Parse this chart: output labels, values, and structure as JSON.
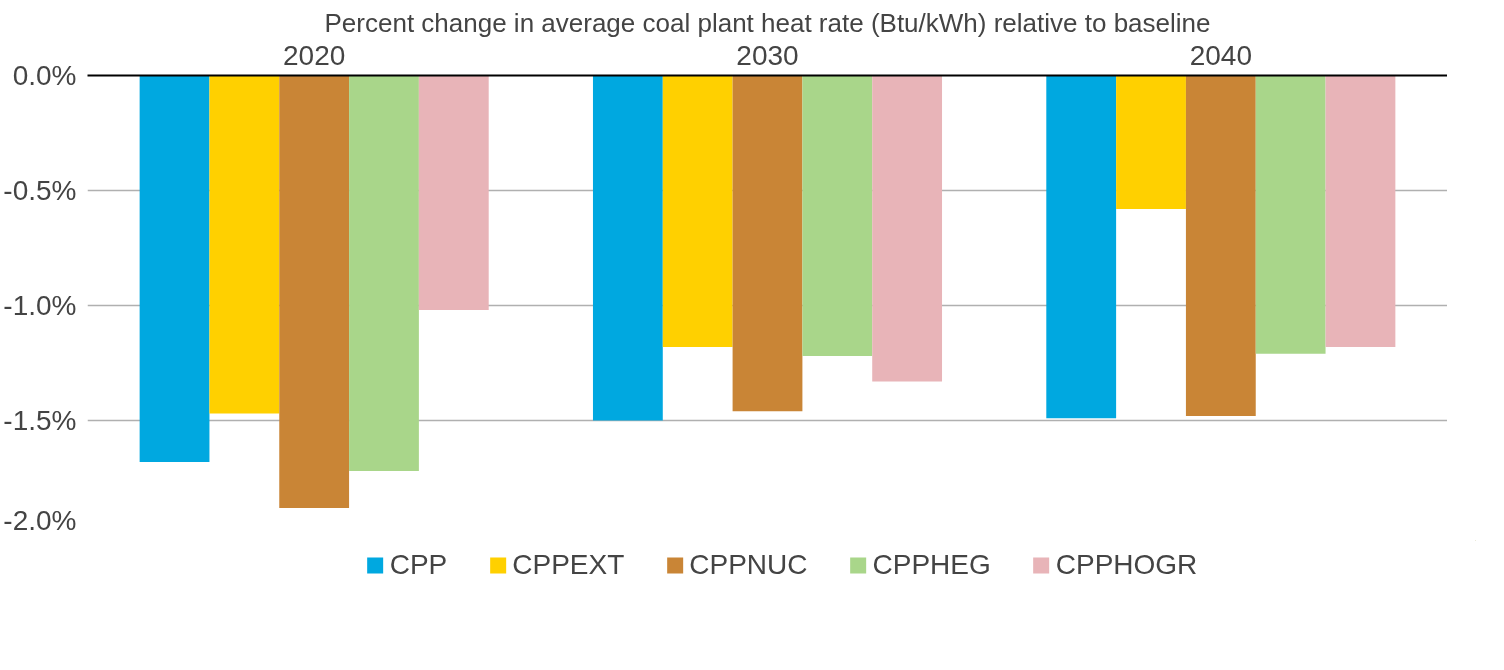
{
  "chart_data": {
    "type": "bar",
    "title": "Percent change in average coal plant heat rate (Btu/kWh) relative to baseline",
    "categories": [
      "2020",
      "2030",
      "2040"
    ],
    "series": [
      {
        "name": "CPP",
        "color": "#00a8e0",
        "values": [
          -1.68,
          -1.5,
          -1.49
        ]
      },
      {
        "name": "CPPEXT",
        "color": "#ffd000",
        "values": [
          -1.47,
          -1.18,
          -0.58
        ]
      },
      {
        "name": "CPPNUC",
        "color": "#c98536",
        "values": [
          -1.88,
          -1.46,
          -1.48
        ]
      },
      {
        "name": "CPPHEG",
        "color": "#a9d68a",
        "values": [
          -1.72,
          -1.22,
          -1.21
        ]
      },
      {
        "name": "CPPHOGR",
        "color": "#e8b4b8",
        "values": [
          -1.02,
          -1.33,
          -1.18
        ]
      }
    ],
    "ylim": [
      -2.0,
      0.0
    ],
    "yticks": [
      {
        "value": 0,
        "label": "0.0%"
      },
      {
        "value": -0.5,
        "label": "-0.5%"
      },
      {
        "value": -1.0,
        "label": "-1.0%"
      },
      {
        "value": -1.5,
        "label": "-1.5%"
      },
      {
        "value": -2.0,
        "label": "-2.0%"
      }
    ],
    "grid": "y",
    "legend": "bottom"
  }
}
